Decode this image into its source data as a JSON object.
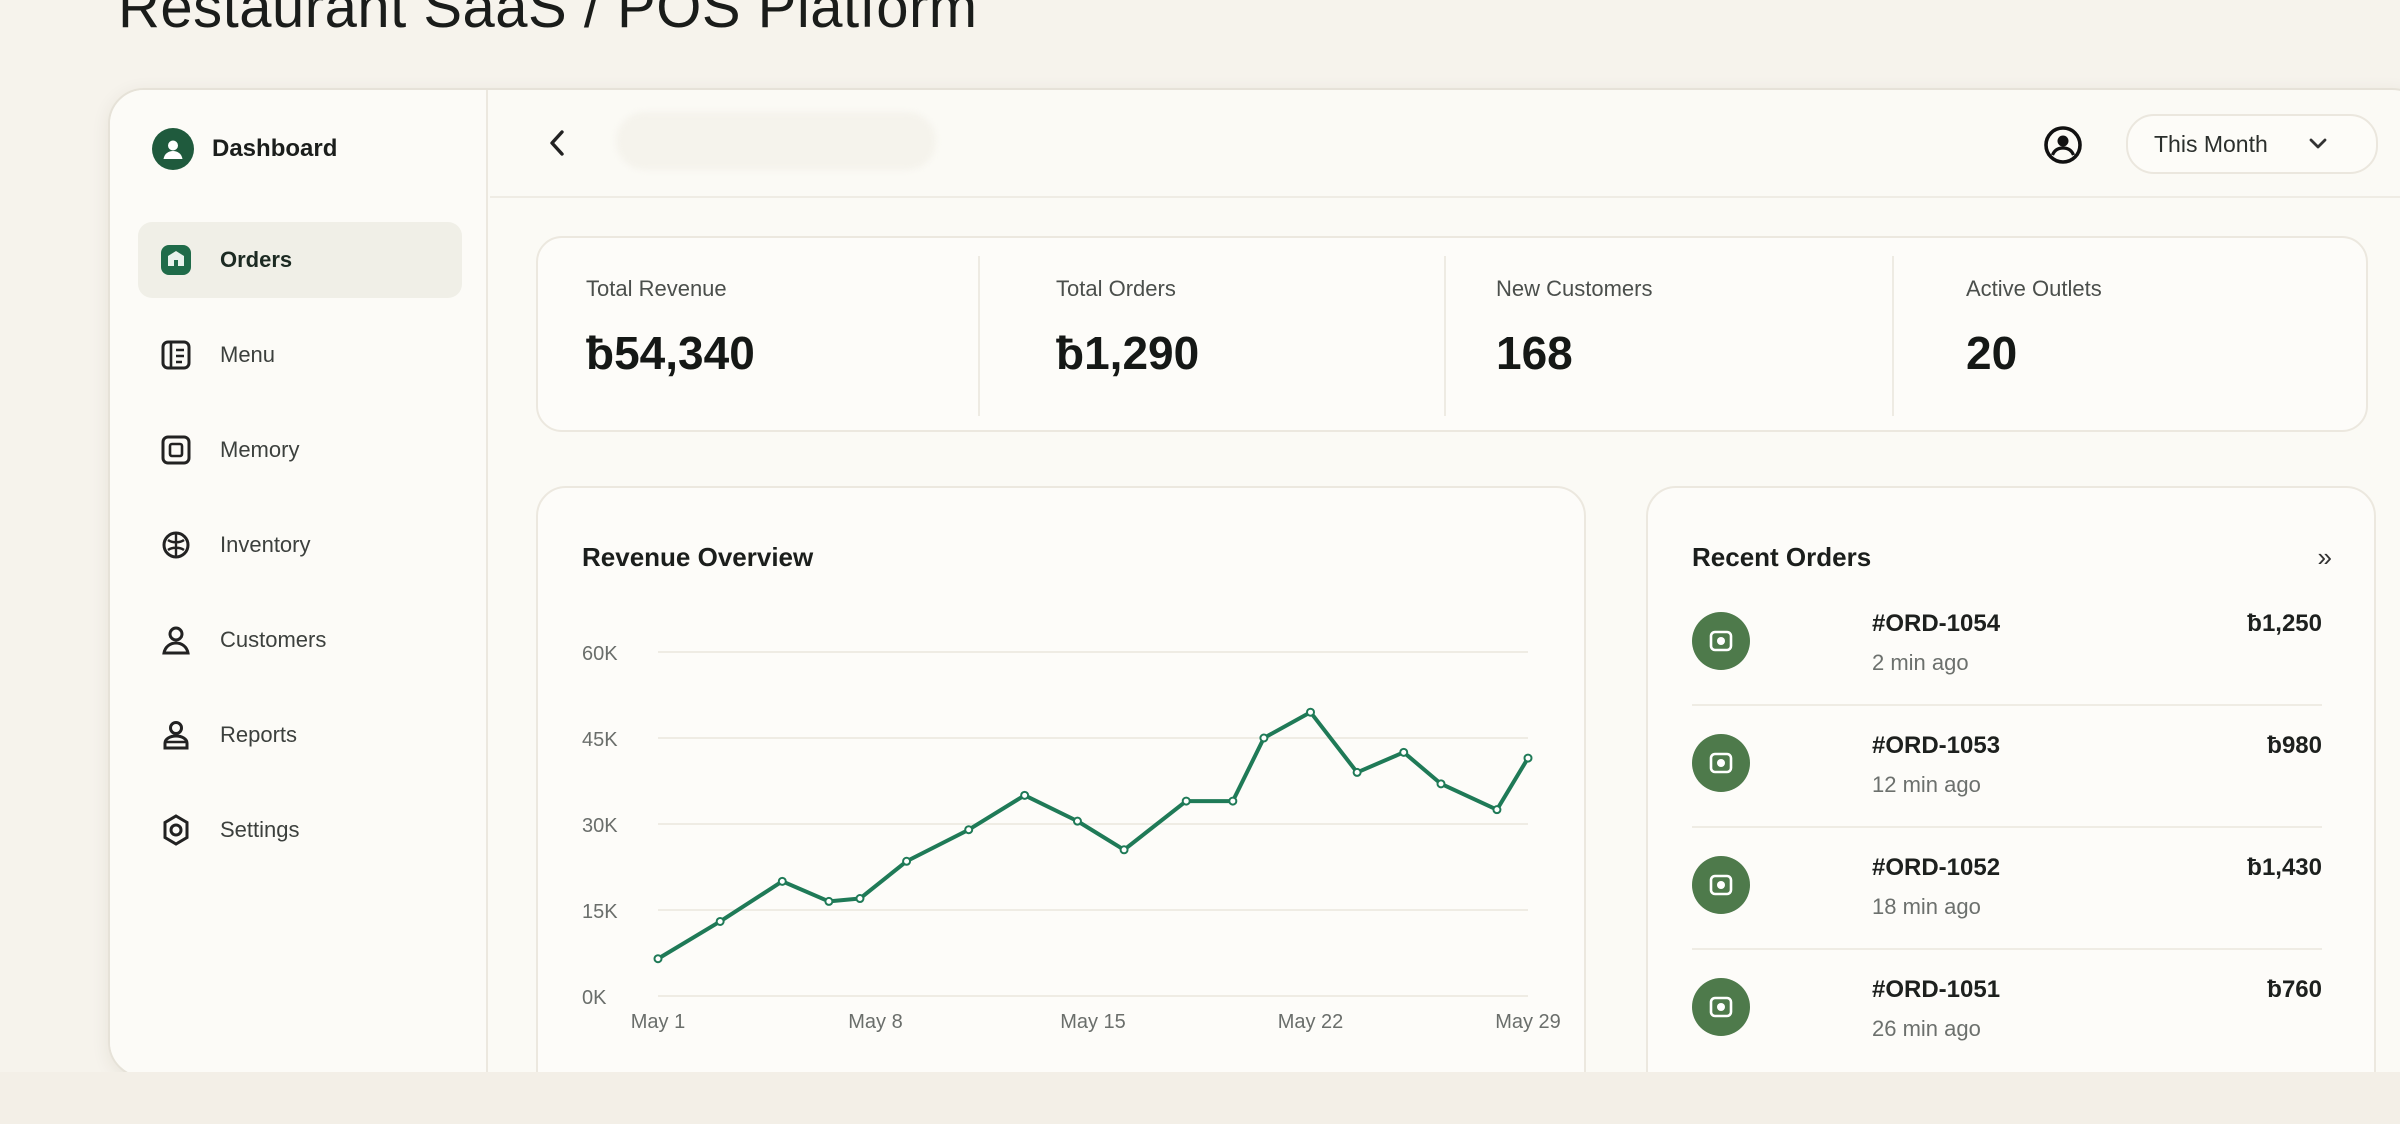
{
  "page": {
    "heading": "Restaurant SaaS / POS Platform"
  },
  "colors": {
    "accent": "#1f7a57",
    "brand_dark": "#1f5a3d",
    "avatar": "#4e7a4b"
  },
  "sidebar": {
    "brand_label": "Dashboard",
    "brand_icon": "user-circle-icon",
    "items": [
      {
        "label": "Orders",
        "icon": "orders-icon",
        "active": true
      },
      {
        "label": "Menu",
        "icon": "menu-icon",
        "active": false
      },
      {
        "label": "Memory",
        "icon": "memory-icon",
        "active": false
      },
      {
        "label": "Inventory",
        "icon": "inventory-icon",
        "active": false
      },
      {
        "label": "Customers",
        "icon": "customers-icon",
        "active": false
      },
      {
        "label": "Reports",
        "icon": "reports-icon",
        "active": false
      },
      {
        "label": "Settings",
        "icon": "settings-icon",
        "active": false
      }
    ]
  },
  "topbar": {
    "period": "This Month",
    "back_icon": "chevron-left-icon",
    "profile_icon": "profile-icon"
  },
  "stats": [
    {
      "label": "Total Revenue",
      "value": "ƀ54,340"
    },
    {
      "label": "Total Orders",
      "value": "ƀ1,290"
    },
    {
      "label": "New Customers",
      "value": "168"
    },
    {
      "label": "Active Outlets",
      "value": "20"
    }
  ],
  "revenue": {
    "title": "Revenue Overview",
    "chart_data": {
      "type": "line",
      "title": "Revenue Overview",
      "xlabel": "",
      "ylabel": "",
      "ylim": [
        0,
        60000
      ],
      "y_ticks": [
        "60K",
        "45K",
        "30K",
        "15K",
        "0K"
      ],
      "y_tick_values": [
        60000,
        45000,
        30000,
        15000,
        0
      ],
      "x_ticks": [
        "May 1",
        "May 8",
        "May 15",
        "May 22",
        "May 29"
      ],
      "x_tick_values": [
        1,
        8,
        15,
        22,
        29
      ],
      "grid": true,
      "series": [
        {
          "x": [
            1,
            3,
            5,
            6.5,
            7.5,
            9,
            11,
            12.8,
            14.5,
            16,
            18,
            19.5,
            20.5,
            22,
            23.5,
            25,
            26.2,
            28,
            29
          ],
          "y": [
            6500,
            13000,
            20000,
            16500,
            17000,
            23500,
            29000,
            35000,
            30500,
            25500,
            34000,
            34000,
            45000,
            49500,
            39000,
            42500,
            37000,
            32500,
            41500
          ]
        }
      ]
    }
  },
  "orders": {
    "title": "Recent Orders",
    "more": "»",
    "items": [
      {
        "id": "#ORD-1054",
        "time": "2 min ago",
        "amount": "ƀ1,250"
      },
      {
        "id": "#ORD-1053",
        "time": "12 min ago",
        "amount": "ƀ980"
      },
      {
        "id": "#ORD-1052",
        "time": "18 min ago",
        "amount": "ƀ1,430"
      },
      {
        "id": "#ORD-1051",
        "time": "26 min ago",
        "amount": "ƀ760"
      }
    ]
  }
}
